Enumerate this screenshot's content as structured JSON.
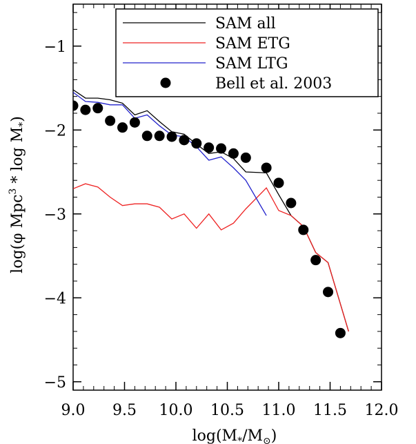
{
  "chart_data": {
    "type": "line",
    "xlabel": "log(M*/M⊙)",
    "ylabel": "log(φ Mpc³ * log M*)",
    "xlim": [
      9.0,
      12.0
    ],
    "ylim": [
      -5.1,
      -0.5
    ],
    "x_ticks": [
      9.0,
      9.5,
      10.0,
      10.5,
      11.0,
      11.5,
      12.0
    ],
    "x_tick_labels": [
      "9.0",
      "9.5",
      "10.0",
      "10.5",
      "11.0",
      "11.5",
      "12.0"
    ],
    "y_ticks": [
      -1,
      -2,
      -3,
      -4,
      -5
    ],
    "y_tick_labels": [
      "−1",
      "−2",
      "−3",
      "−4",
      "−5"
    ],
    "legend_position": "top-right",
    "series": [
      {
        "name": "SAM all",
        "color": "#000000",
        "kind": "line",
        "x": [
          9.0,
          9.12,
          9.24,
          9.36,
          9.48,
          9.6,
          9.72,
          9.84,
          9.96,
          10.08,
          10.2,
          10.32,
          10.44,
          10.56,
          10.68,
          10.88,
          11.0,
          11.12,
          11.24,
          11.36,
          11.48,
          11.68
        ],
        "y": [
          -1.52,
          -1.62,
          -1.62,
          -1.64,
          -1.68,
          -1.82,
          -1.77,
          -1.9,
          -2.02,
          -2.05,
          -2.17,
          -2.28,
          -2.26,
          -2.34,
          -2.5,
          -2.51,
          -2.77,
          -3.02,
          -3.15,
          -3.46,
          -3.58,
          -4.4
        ]
      },
      {
        "name": "SAM ETG",
        "color": "#ee2222",
        "kind": "line",
        "x": [
          9.0,
          9.12,
          9.24,
          9.36,
          9.48,
          9.6,
          9.72,
          9.84,
          9.96,
          10.08,
          10.2,
          10.32,
          10.44,
          10.56,
          10.68,
          10.88,
          11.0,
          11.12,
          11.24,
          11.36,
          11.48,
          11.68
        ],
        "y": [
          -2.7,
          -2.64,
          -2.68,
          -2.8,
          -2.9,
          -2.88,
          -2.88,
          -2.92,
          -3.06,
          -3.0,
          -3.17,
          -3.0,
          -3.19,
          -3.11,
          -2.94,
          -2.69,
          -2.96,
          -3.02,
          -3.15,
          -3.46,
          -3.58,
          -4.4
        ]
      },
      {
        "name": "SAM LTG",
        "color": "#2222cc",
        "kind": "line",
        "x": [
          9.0,
          9.12,
          9.24,
          9.36,
          9.48,
          9.6,
          9.72,
          9.84,
          9.96,
          10.08,
          10.2,
          10.32,
          10.44,
          10.56,
          10.68,
          10.88
        ],
        "y": [
          -1.55,
          -1.66,
          -1.67,
          -1.7,
          -1.7,
          -1.86,
          -1.82,
          -1.95,
          -2.06,
          -2.08,
          -2.2,
          -2.36,
          -2.32,
          -2.45,
          -2.6,
          -3.02
        ]
      },
      {
        "name": "Bell et al. 2003",
        "color": "#000000",
        "kind": "scatter",
        "x": [
          9.0,
          9.12,
          9.24,
          9.36,
          9.48,
          9.6,
          9.72,
          9.84,
          9.96,
          10.08,
          10.2,
          10.32,
          10.44,
          10.56,
          10.68,
          10.88,
          11.0,
          11.12,
          11.24,
          11.36,
          11.48,
          11.6
        ],
        "y": [
          -1.71,
          -1.76,
          -1.74,
          -1.89,
          -1.97,
          -1.91,
          -2.07,
          -2.07,
          -2.08,
          -2.12,
          -2.16,
          -2.21,
          -2.22,
          -2.28,
          -2.33,
          -2.45,
          -2.63,
          -2.87,
          -3.19,
          -3.55,
          -3.93,
          -4.42
        ]
      }
    ]
  }
}
